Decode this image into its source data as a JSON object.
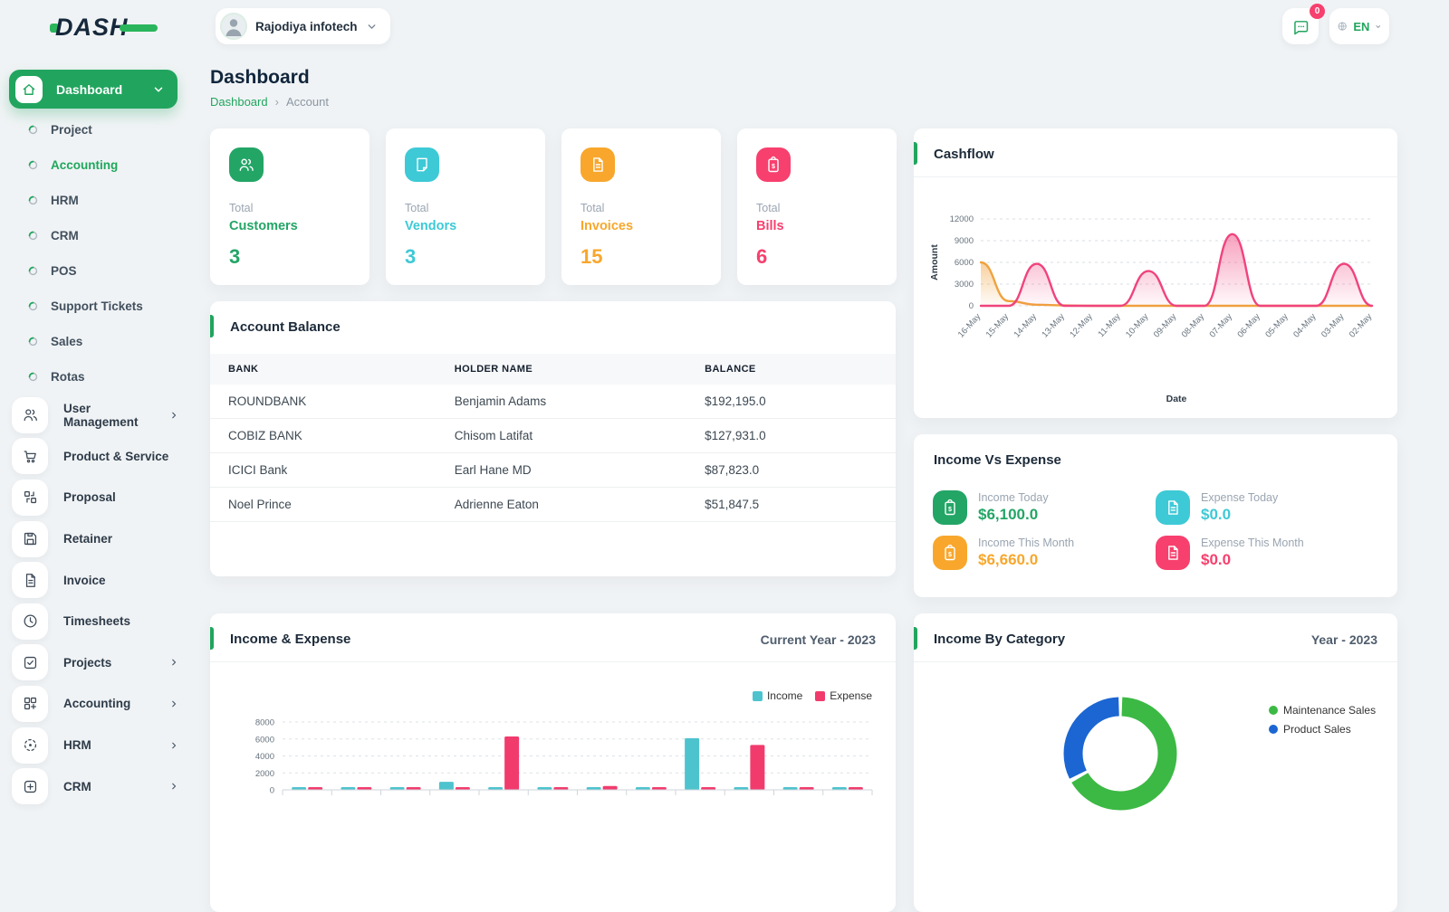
{
  "brand": {
    "logo_text": "DASH"
  },
  "theme": {
    "primary_green": "#21a55e",
    "cyan": "#3ec9d6",
    "orange": "#f8a72c",
    "pink": "#f7406e",
    "page_bg": "#f0f3f5"
  },
  "topbar": {
    "company": "Rajodiya infotech",
    "messages_badge": "0",
    "language": "EN"
  },
  "page": {
    "title": "Dashboard",
    "breadcrumb": [
      "Dashboard",
      "Account"
    ]
  },
  "sidebar": {
    "dashboard_label": "Dashboard",
    "submenu": [
      "Project",
      "Accounting",
      "HRM",
      "CRM",
      "POS",
      "Support Tickets",
      "Sales",
      "Rotas"
    ],
    "active_submenu": "Accounting",
    "menu": [
      {
        "label": "User Management",
        "chevron": true
      },
      {
        "label": "Product & Service",
        "chevron": false
      },
      {
        "label": "Proposal",
        "chevron": false
      },
      {
        "label": "Retainer",
        "chevron": false
      },
      {
        "label": "Invoice",
        "chevron": false
      },
      {
        "label": "Timesheets",
        "chevron": false
      },
      {
        "label": "Projects",
        "chevron": true
      },
      {
        "label": "Accounting",
        "chevron": true
      },
      {
        "label": "HRM",
        "chevron": true
      },
      {
        "label": "CRM",
        "chevron": true
      }
    ]
  },
  "stats": [
    {
      "prefix": "Total",
      "label": "Customers",
      "value": "3",
      "color": "#23a566"
    },
    {
      "prefix": "Total",
      "label": "Vendors",
      "value": "3",
      "color": "#3ec9d6"
    },
    {
      "prefix": "Total",
      "label": "Invoices",
      "value": "15",
      "color": "#f8a72c"
    },
    {
      "prefix": "Total",
      "label": "Bills",
      "value": "6",
      "color": "#f7406e"
    }
  ],
  "account_balance": {
    "title": "Account Balance",
    "columns": [
      "BANK",
      "HOLDER NAME",
      "BALANCE"
    ],
    "rows": [
      {
        "bank": "ROUNDBANK",
        "holder": "Benjamin Adams",
        "balance": "$192,195.0"
      },
      {
        "bank": "COBIZ BANK",
        "holder": "Chisom Latifat",
        "balance": "$127,931.0"
      },
      {
        "bank": "ICICI Bank",
        "holder": "Earl Hane MD",
        "balance": "$87,823.0"
      },
      {
        "bank": "Noel Prince",
        "holder": "Adrienne Eaton",
        "balance": "$51,847.5"
      }
    ]
  },
  "income_vs_expense": {
    "title": "Income Vs Expense",
    "items": [
      {
        "label": "Income Today",
        "value": "$6,100.0",
        "color": "#23a566"
      },
      {
        "label": "Expense Today",
        "value": "$0.0",
        "color": "#3ec9d6"
      },
      {
        "label": "Income This Month",
        "value": "$6,660.0",
        "color": "#f8a72c"
      },
      {
        "label": "Expense This Month",
        "value": "$0.0",
        "color": "#f7406e"
      }
    ]
  },
  "chart_data": [
    {
      "id": "cashflow",
      "type": "area",
      "title": "Cashflow",
      "xlabel": "Date",
      "ylabel": "Amount",
      "ylim": [
        0,
        12000
      ],
      "yticks": [
        0,
        3000,
        6000,
        9000,
        12000
      ],
      "grid": true,
      "legend": "none",
      "categories": [
        "16-May",
        "15-May",
        "14-May",
        "13-May",
        "12-May",
        "11-May",
        "10-May",
        "09-May",
        "08-May",
        "07-May",
        "06-May",
        "05-May",
        "04-May",
        "03-May",
        "02-May"
      ],
      "series": [
        {
          "name": "orange-series",
          "color": "#f0a23e",
          "values": [
            6000,
            650,
            150,
            50,
            0,
            0,
            0,
            0,
            0,
            0,
            0,
            0,
            0,
            0,
            0
          ]
        },
        {
          "name": "pink-series",
          "color": "#f0437c",
          "values": [
            0,
            0,
            5800,
            0,
            0,
            0,
            4800,
            0,
            0,
            9900,
            0,
            0,
            0,
            5800,
            0
          ]
        }
      ]
    },
    {
      "id": "income_expense",
      "type": "bar",
      "title": "Income & Expense",
      "subtitle": "Current Year - 2023",
      "ylim": [
        0,
        8000
      ],
      "yticks": [
        0,
        2000,
        4000,
        6000,
        8000
      ],
      "grid": true,
      "legend": "top-right",
      "categories": [
        "",
        "",
        "",
        "",
        "",
        "",
        "",
        "",
        "",
        "",
        "",
        ""
      ],
      "series": [
        {
          "name": "Income",
          "color": "#4dc3ce",
          "values": [
            250,
            180,
            180,
            950,
            120,
            130,
            200,
            130,
            6100,
            120,
            130,
            120
          ]
        },
        {
          "name": "Expense",
          "color": "#f23b6d",
          "values": [
            150,
            150,
            120,
            120,
            6300,
            130,
            450,
            130,
            120,
            5300,
            120,
            120
          ]
        }
      ]
    },
    {
      "id": "income_by_category",
      "type": "pie",
      "donut": true,
      "title": "Income By Category",
      "subtitle": "Year - 2023",
      "legend": "right",
      "labels": [
        "Maintenance Sales",
        "Product Sales"
      ],
      "values": [
        67,
        33
      ],
      "colors": [
        "#3cb944",
        "#1b66d2"
      ]
    }
  ]
}
